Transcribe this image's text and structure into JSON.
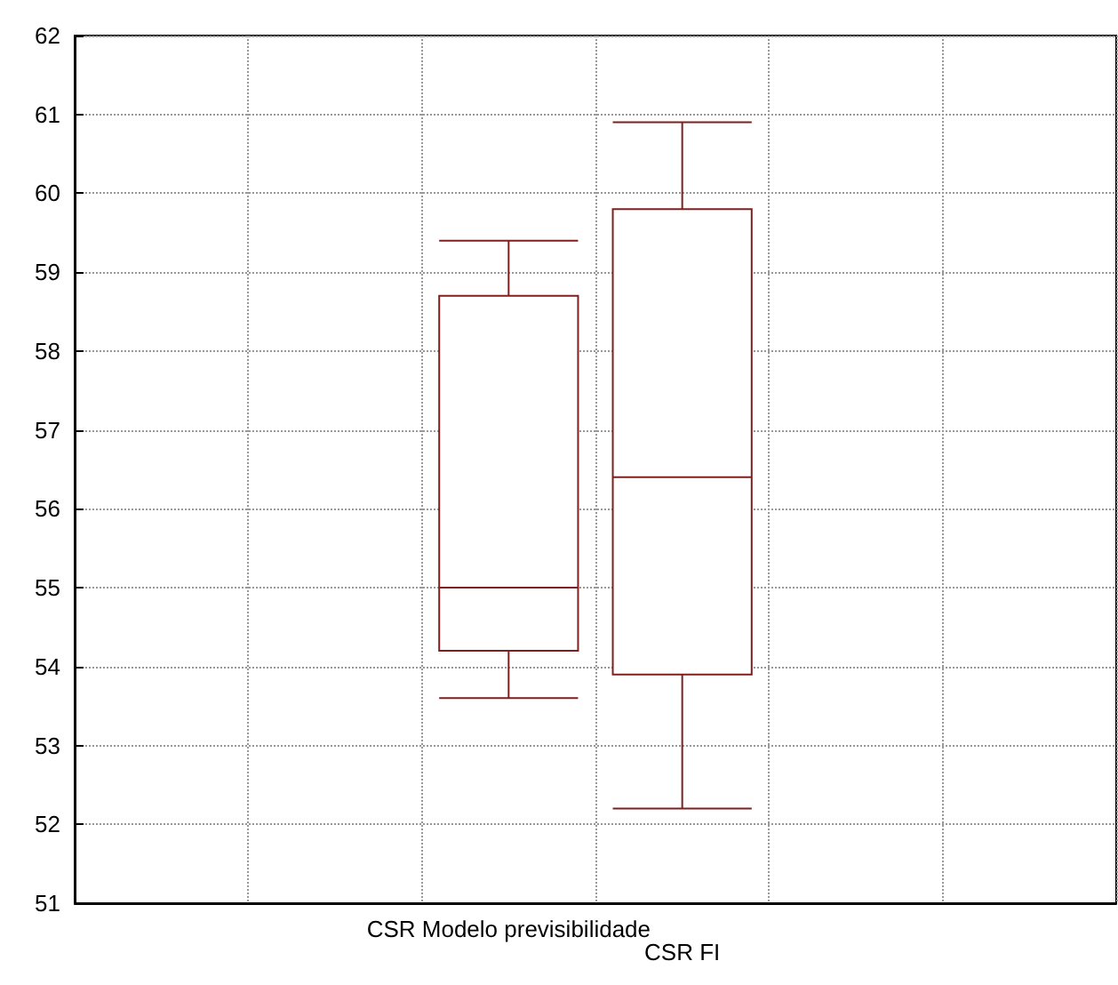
{
  "chart_data": {
    "type": "box",
    "categories": [
      null,
      null,
      "CSR Modelo previsibilidade",
      "CSR FI",
      null,
      null
    ],
    "boxes": [
      null,
      null,
      {
        "low": 53.6,
        "q1": 54.2,
        "median": 55.0,
        "q3": 58.7,
        "high": 59.4
      },
      {
        "low": 52.2,
        "q1": 53.9,
        "median": 56.4,
        "q3": 59.8,
        "high": 60.9
      },
      null,
      null
    ],
    "color": "#7f1f1f",
    "ylim": [
      51,
      62
    ],
    "yticks": [
      51,
      52,
      53,
      54,
      55,
      56,
      57,
      58,
      59,
      60,
      61,
      62
    ],
    "grid": true
  }
}
